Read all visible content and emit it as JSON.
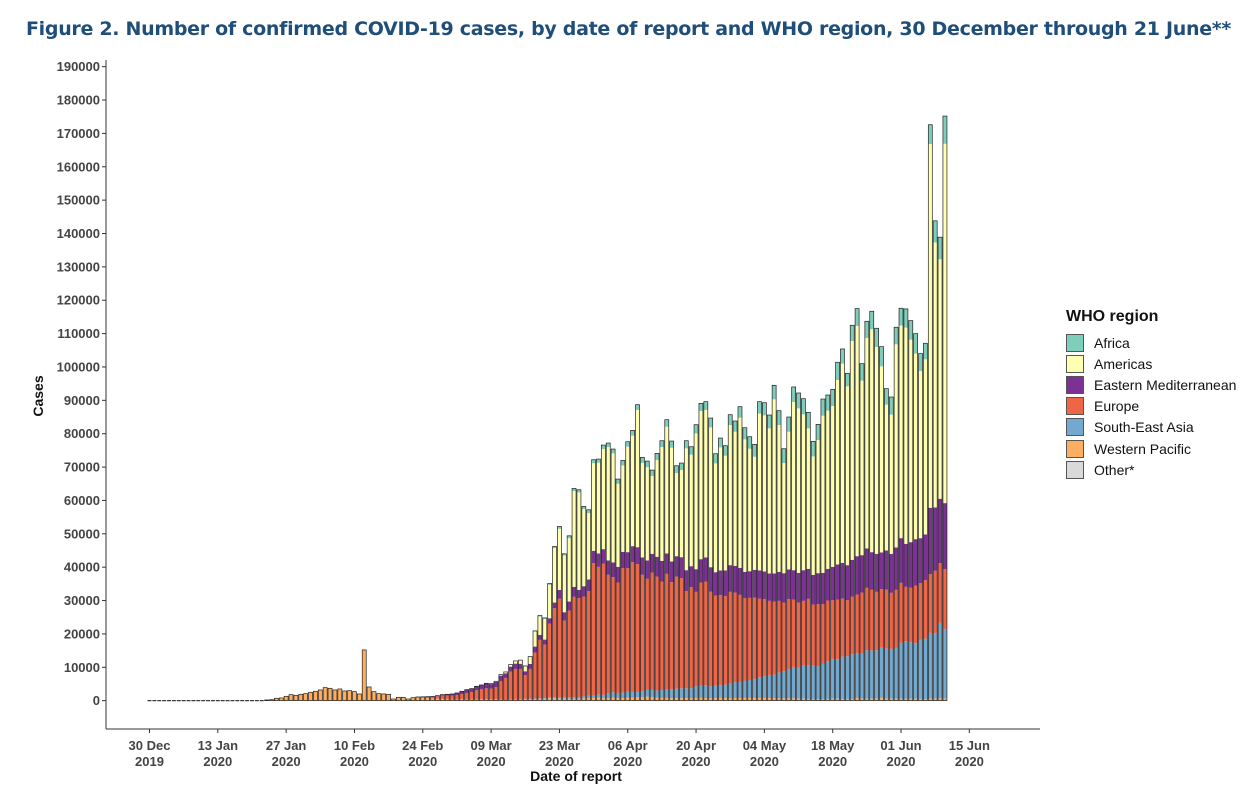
{
  "title": "Figure 2. Number of confirmed COVID-19 cases, by date of report and WHO region, 30 December through 21 June**",
  "chart_data": {
    "type": "bar",
    "stacked": true,
    "title": "Figure 2. Number of confirmed COVID-19 cases, by date of report and WHO region, 30 December through 21 June**",
    "xlabel": "Date of report",
    "ylabel": "Cases",
    "ylim": [
      -8500,
      192000
    ],
    "yticks": [
      0,
      10000,
      20000,
      30000,
      40000,
      50000,
      60000,
      70000,
      80000,
      90000,
      100000,
      110000,
      120000,
      130000,
      140000,
      150000,
      160000,
      170000,
      180000,
      190000
    ],
    "xticks": [
      {
        "day": 0,
        "line1": "30 Dec",
        "line2": "2019"
      },
      {
        "day": 14,
        "line1": "13 Jan",
        "line2": "2020"
      },
      {
        "day": 28,
        "line1": "27 Jan",
        "line2": "2020"
      },
      {
        "day": 42,
        "line1": "10 Feb",
        "line2": "2020"
      },
      {
        "day": 56,
        "line1": "24 Feb",
        "line2": "2020"
      },
      {
        "day": 70,
        "line1": "09 Mar",
        "line2": "2020"
      },
      {
        "day": 84,
        "line1": "23 Mar",
        "line2": "2020"
      },
      {
        "day": 98,
        "line1": "06 Apr",
        "line2": "2020"
      },
      {
        "day": 112,
        "line1": "20 Apr",
        "line2": "2020"
      },
      {
        "day": 126,
        "line1": "04 May",
        "line2": "2020"
      },
      {
        "day": 140,
        "line1": "18 May",
        "line2": "2020"
      },
      {
        "day": 154,
        "line1": "01 Jun",
        "line2": "2020"
      },
      {
        "day": 168,
        "line1": "15 Jun",
        "line2": "2020"
      }
    ],
    "x_first_date": "30 Dec 2019",
    "x_last_date": "21 Jun 2020",
    "grid": false,
    "legend_position": "right",
    "legend_title": "WHO region",
    "series": [
      {
        "name": "Africa",
        "color": "#7fcdbb"
      },
      {
        "name": "Americas",
        "color": "#ffffb2"
      },
      {
        "name": "Eastern Mediterranean",
        "color": "#7b3294"
      },
      {
        "name": "Europe",
        "color": "#ef6548"
      },
      {
        "name": "South-East Asia",
        "color": "#74a9cf"
      },
      {
        "name": "Western Pacific",
        "color": "#fdae61"
      },
      {
        "name": "Other*",
        "color": "#d9d9d9"
      }
    ],
    "data": [
      [
        0,
        0,
        0,
        0,
        0,
        0,
        0
      ],
      [
        0,
        0,
        0,
        0,
        0,
        0,
        0
      ],
      [
        0,
        0,
        0,
        0,
        0,
        0,
        0
      ],
      [
        0,
        0,
        0,
        0,
        0,
        0,
        0
      ],
      [
        0,
        0,
        0,
        0,
        0,
        0,
        0
      ],
      [
        0,
        0,
        0,
        0,
        0,
        0,
        0
      ],
      [
        0,
        0,
        0,
        0,
        0,
        0,
        0
      ],
      [
        0,
        0,
        0,
        0,
        0,
        0,
        0
      ],
      [
        0,
        0,
        0,
        0,
        0,
        0,
        0
      ],
      [
        0,
        0,
        0,
        0,
        0,
        0,
        0
      ],
      [
        0,
        0,
        0,
        0,
        0,
        0,
        0
      ],
      [
        0,
        0,
        0,
        0,
        0,
        0,
        0
      ],
      [
        0,
        0,
        0,
        0,
        0,
        0,
        0
      ],
      [
        0,
        0,
        0,
        0,
        0,
        0,
        0
      ],
      [
        0,
        0,
        0,
        0,
        0,
        0,
        0
      ],
      [
        0,
        0,
        0,
        0,
        0,
        0,
        0
      ],
      [
        0,
        0,
        0,
        0,
        0,
        0,
        0
      ],
      [
        0,
        0,
        0,
        0,
        0,
        0,
        0
      ],
      [
        0,
        0,
        0,
        0,
        0,
        0,
        0
      ],
      [
        0,
        0,
        0,
        0,
        0,
        0,
        0
      ],
      [
        0,
        0,
        0,
        0,
        0,
        0,
        0
      ],
      [
        0,
        0,
        0,
        0,
        0,
        0,
        0
      ],
      [
        0,
        0,
        0,
        0,
        0,
        0,
        0
      ],
      [
        0,
        0,
        0,
        0,
        0,
        0,
        0
      ],
      [
        0,
        0,
        0,
        0,
        0,
        200,
        0
      ],
      [
        0,
        0,
        0,
        0,
        0,
        300,
        0
      ],
      [
        0,
        0,
        0,
        0,
        0,
        700,
        0
      ],
      [
        0,
        0,
        0,
        0,
        0,
        800,
        0
      ],
      [
        0,
        0,
        0,
        0,
        0,
        1300,
        0
      ],
      [
        0,
        0,
        0,
        0,
        0,
        1800,
        0
      ],
      [
        0,
        0,
        0,
        0,
        0,
        1600,
        0
      ],
      [
        0,
        0,
        0,
        0,
        0,
        1900,
        0
      ],
      [
        0,
        0,
        0,
        0,
        0,
        2100,
        0
      ],
      [
        0,
        0,
        0,
        0,
        0,
        2500,
        0
      ],
      [
        0,
        0,
        0,
        0,
        0,
        2800,
        0
      ],
      [
        0,
        0,
        0,
        0,
        0,
        3200,
        0
      ],
      [
        0,
        0,
        0,
        0,
        0,
        3900,
        0
      ],
      [
        0,
        0,
        0,
        0,
        0,
        3700,
        0
      ],
      [
        0,
        0,
        0,
        0,
        0,
        3200,
        0
      ],
      [
        0,
        0,
        0,
        0,
        0,
        3500,
        0
      ],
      [
        0,
        0,
        0,
        0,
        0,
        2900,
        0
      ],
      [
        0,
        0,
        0,
        0,
        0,
        3000,
        0
      ],
      [
        0,
        0,
        0,
        0,
        0,
        2700,
        0
      ],
      [
        0,
        0,
        0,
        0,
        0,
        2000,
        0
      ],
      [
        0,
        0,
        0,
        0,
        0,
        15200,
        0
      ],
      [
        0,
        0,
        0,
        0,
        0,
        4100,
        0
      ],
      [
        0,
        0,
        0,
        0,
        0,
        2700,
        0
      ],
      [
        0,
        0,
        0,
        0,
        0,
        2100,
        0
      ],
      [
        0,
        0,
        0,
        0,
        0,
        2000,
        0
      ],
      [
        0,
        0,
        0,
        0,
        0,
        1900,
        0
      ],
      [
        0,
        0,
        0,
        0,
        0,
        500,
        0
      ],
      [
        0,
        0,
        0,
        0,
        0,
        1000,
        0
      ],
      [
        0,
        0,
        0,
        0,
        0,
        1000,
        0
      ],
      [
        0,
        0,
        0,
        0,
        0,
        500,
        0
      ],
      [
        0,
        0,
        0,
        0,
        0,
        900,
        0
      ],
      [
        0,
        0,
        0,
        100,
        0,
        1000,
        0
      ],
      [
        0,
        0,
        50,
        200,
        0,
        900,
        0
      ],
      [
        0,
        0,
        100,
        400,
        0,
        700,
        0
      ],
      [
        0,
        0,
        150,
        500,
        0,
        600,
        0
      ],
      [
        0,
        0,
        200,
        700,
        0,
        600,
        0
      ],
      [
        0,
        0,
        300,
        1000,
        0,
        500,
        0
      ],
      [
        0,
        0,
        400,
        1100,
        0,
        400,
        0
      ],
      [
        0,
        0,
        500,
        1200,
        0,
        300,
        0
      ],
      [
        0,
        0,
        600,
        1400,
        0,
        300,
        0
      ],
      [
        0,
        0,
        800,
        1600,
        0,
        400,
        0
      ],
      [
        0,
        0,
        1000,
        2000,
        0,
        300,
        0
      ],
      [
        0,
        0,
        1000,
        2300,
        0,
        300,
        0
      ],
      [
        0,
        0,
        1200,
        2800,
        0,
        300,
        0
      ],
      [
        0,
        0,
        1300,
        3000,
        0,
        400,
        0
      ],
      [
        0,
        0,
        1500,
        3300,
        0,
        400,
        0
      ],
      [
        0,
        100,
        1400,
        3200,
        0,
        400,
        0
      ],
      [
        0,
        200,
        1500,
        3700,
        0,
        400,
        0
      ],
      [
        0,
        300,
        1700,
        5500,
        0,
        300,
        0
      ],
      [
        0,
        400,
        1400,
        6600,
        0,
        200,
        0
      ],
      [
        0,
        600,
        1500,
        8400,
        0,
        300,
        0
      ],
      [
        0,
        800,
        1600,
        9200,
        0,
        300,
        0
      ],
      [
        0,
        1100,
        1600,
        9000,
        50,
        400,
        0
      ],
      [
        100,
        1500,
        1200,
        7000,
        100,
        500,
        0
      ],
      [
        100,
        2100,
        1500,
        8900,
        100,
        500,
        0
      ],
      [
        200,
        4500,
        1800,
        13800,
        100,
        500,
        0
      ],
      [
        300,
        5500,
        1500,
        17500,
        100,
        600,
        0
      ],
      [
        300,
        6200,
        1500,
        16000,
        200,
        600,
        0
      ],
      [
        400,
        10000,
        1600,
        22100,
        300,
        700,
        0
      ],
      [
        500,
        16300,
        1700,
        26700,
        300,
        700,
        0
      ],
      [
        700,
        18300,
        2700,
        29600,
        300,
        600,
        0
      ],
      [
        500,
        17000,
        2500,
        23000,
        400,
        600,
        0
      ],
      [
        700,
        19000,
        2700,
        26000,
        400,
        600,
        0
      ],
      [
        800,
        28700,
        3000,
        30000,
        500,
        600,
        0
      ],
      [
        800,
        29200,
        2500,
        29600,
        500,
        600,
        0
      ],
      [
        800,
        23100,
        3100,
        29900,
        600,
        700,
        0
      ],
      [
        1000,
        19900,
        3500,
        31300,
        700,
        800,
        0
      ],
      [
        1000,
        26300,
        3700,
        39700,
        700,
        800,
        0
      ],
      [
        1100,
        27200,
        4000,
        38300,
        900,
        900,
        0
      ],
      [
        1200,
        30000,
        4300,
        39400,
        1000,
        700,
        0
      ],
      [
        1200,
        34000,
        4300,
        35600,
        1400,
        700,
        0
      ],
      [
        1300,
        32700,
        4400,
        34500,
        1600,
        900,
        0
      ],
      [
        1400,
        24900,
        4700,
        33100,
        1500,
        800,
        0
      ],
      [
        1500,
        25900,
        4900,
        37300,
        1600,
        800,
        0
      ],
      [
        1500,
        31600,
        4800,
        37000,
        1800,
        900,
        0
      ],
      [
        1600,
        33100,
        4800,
        38900,
        1700,
        900,
        0
      ],
      [
        1600,
        41100,
        5100,
        38300,
        1600,
        1000,
        0
      ],
      [
        1700,
        28300,
        5200,
        34800,
        1900,
        1000,
        0
      ],
      [
        1800,
        28000,
        5500,
        33300,
        2000,
        1200,
        0
      ],
      [
        1800,
        23300,
        5600,
        35200,
        2200,
        1000,
        0
      ],
      [
        2000,
        29000,
        5900,
        34200,
        2100,
        900,
        0
      ],
      [
        1900,
        34100,
        6200,
        32500,
        2400,
        800,
        0
      ],
      [
        2100,
        38000,
        6100,
        34700,
        2500,
        800,
        0
      ],
      [
        2000,
        34100,
        6200,
        32100,
        2700,
        700,
        0
      ],
      [
        2200,
        24900,
        6100,
        33600,
        2900,
        700,
        0
      ],
      [
        2100,
        26100,
        6300,
        33000,
        3000,
        700,
        0
      ],
      [
        2300,
        36500,
        6300,
        29100,
        2900,
        800,
        0
      ],
      [
        2400,
        33400,
        6300,
        30300,
        3000,
        700,
        0
      ],
      [
        2600,
        40700,
        6800,
        28300,
        3500,
        800,
        0
      ],
      [
        2300,
        44400,
        7000,
        30900,
        3700,
        800,
        0
      ],
      [
        2500,
        44200,
        7200,
        31100,
        3800,
        800,
        0
      ],
      [
        2800,
        41900,
        7300,
        28400,
        3600,
        700,
        0
      ],
      [
        2900,
        32600,
        7000,
        27000,
        3800,
        700,
        0
      ],
      [
        2800,
        36900,
        7400,
        27000,
        3800,
        800,
        0
      ],
      [
        3000,
        34400,
        7700,
        26500,
        4000,
        800,
        0
      ],
      [
        3100,
        42000,
        8000,
        27500,
        4400,
        700,
        0
      ],
      [
        3200,
        40200,
        8000,
        26900,
        4700,
        800,
        0
      ],
      [
        3300,
        45000,
        8100,
        26100,
        4800,
        800,
        0
      ],
      [
        3500,
        39700,
        7900,
        24800,
        5100,
        800,
        0
      ],
      [
        3600,
        36700,
        8000,
        24600,
        5400,
        800,
        0
      ],
      [
        3700,
        33900,
        8300,
        24400,
        5700,
        800,
        0
      ],
      [
        3600,
        47000,
        8400,
        23600,
        6200,
        800,
        0
      ],
      [
        3800,
        46800,
        8300,
        23100,
        6500,
        800,
        0
      ],
      [
        4000,
        43500,
        8200,
        22200,
        6900,
        800,
        0
      ],
      [
        4200,
        52200,
        8400,
        21900,
        7100,
        700,
        0
      ],
      [
        4300,
        44000,
        8700,
        21500,
        7700,
        700,
        0
      ],
      [
        4300,
        33000,
        8800,
        20600,
        8100,
        700,
        0
      ],
      [
        4400,
        41300,
        8900,
        20900,
        8800,
        700,
        0
      ],
      [
        4500,
        50400,
        8800,
        20200,
        9400,
        700,
        0
      ],
      [
        4600,
        49300,
        8900,
        19500,
        9300,
        600,
        0
      ],
      [
        4700,
        46700,
        9200,
        19400,
        9900,
        600,
        0
      ],
      [
        4800,
        42100,
        9000,
        19900,
        10100,
        500,
        0
      ],
      [
        4500,
        35500,
        8900,
        18300,
        10000,
        500,
        0
      ],
      [
        4700,
        39900,
        9300,
        18600,
        9800,
        500,
        0
      ],
      [
        5000,
        47100,
        9400,
        17900,
        10600,
        400,
        0
      ],
      [
        4700,
        47400,
        9500,
        18200,
        11300,
        500,
        0
      ],
      [
        5000,
        48200,
        10000,
        17600,
        11900,
        600,
        0
      ],
      [
        5300,
        55300,
        10500,
        17900,
        11800,
        600,
        0
      ],
      [
        4400,
        59700,
        10700,
        17400,
        12700,
        500,
        0
      ],
      [
        3900,
        53600,
        10500,
        16800,
        12800,
        500,
        0
      ],
      [
        4700,
        65600,
        11000,
        17300,
        13400,
        500,
        0
      ],
      [
        5200,
        69000,
        11500,
        17600,
        13400,
        800,
        0
      ],
      [
        5100,
        52300,
        11200,
        18300,
        13500,
        600,
        0
      ],
      [
        5000,
        63100,
        11800,
        18700,
        14500,
        600,
        0
      ],
      [
        5400,
        66800,
        11300,
        18200,
        14400,
        600,
        0
      ],
      [
        5600,
        62000,
        11400,
        17500,
        14500,
        600,
        0
      ],
      [
        5900,
        55800,
        11000,
        17500,
        15100,
        800,
        0
      ],
      [
        4800,
        43700,
        11700,
        17700,
        15000,
        600,
        0
      ],
      [
        5300,
        41700,
        11700,
        16800,
        14900,
        600,
        0
      ],
      [
        5100,
        60900,
        12700,
        17400,
        15200,
        600,
        0
      ],
      [
        5200,
        63700,
        13400,
        18000,
        16700,
        600,
        0
      ],
      [
        5600,
        64800,
        12900,
        16300,
        17200,
        600,
        0
      ],
      [
        5700,
        60700,
        13600,
        16400,
        16900,
        600,
        0
      ],
      [
        6000,
        55600,
        13900,
        17300,
        16600,
        600,
        0
      ],
      [
        5200,
        50100,
        13500,
        17000,
        17700,
        500,
        0
      ],
      [
        4800,
        52500,
        13700,
        17500,
        18100,
        500,
        0
      ],
      [
        5800,
        109000,
        19900,
        17600,
        19700,
        600,
        0
      ],
      [
        6500,
        79400,
        19000,
        18700,
        19600,
        600,
        0
      ],
      [
        6600,
        71800,
        19300,
        17900,
        22600,
        700,
        0
      ],
      [
        8300,
        107700,
        19800,
        18000,
        20800,
        600,
        0
      ]
    ]
  }
}
